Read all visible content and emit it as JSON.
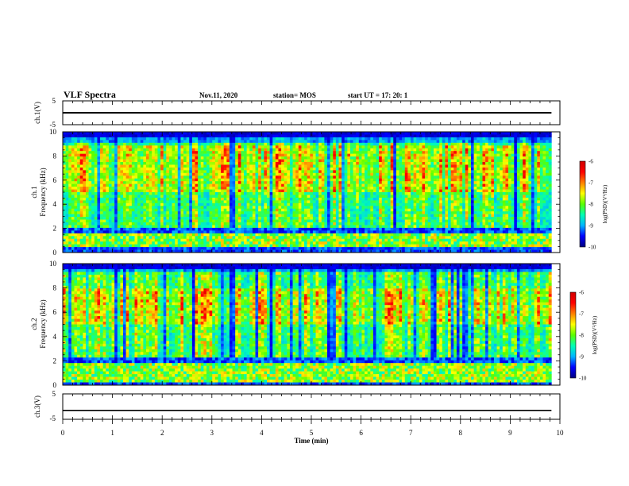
{
  "header": {
    "title": "VLF Spectra",
    "date": "Nov.11, 2020",
    "station": "station= MOS",
    "start": "start UT = 17: 20: 1"
  },
  "colors": {
    "colormap": [
      "#00007f",
      "#0000ff",
      "#00b4ff",
      "#00ffb4",
      "#5aff00",
      "#ffff00",
      "#ff7f00",
      "#ff0000",
      "#d10000"
    ],
    "trace": "#000000"
  },
  "chart_data": [
    {
      "type": "line",
      "panel": "ch1-voltage",
      "ylabel": "ch.1(V)",
      "ylim": [
        -5,
        5
      ],
      "yticks": [
        "5",
        "-5"
      ],
      "x": [
        0,
        9.83
      ],
      "y": [
        0,
        0
      ]
    },
    {
      "type": "heatmap",
      "panel": "ch1-spectrogram",
      "ylabel_line1": "ch.1",
      "ylabel_line2": "Frequency (kHz)",
      "ylim": [
        0,
        10
      ],
      "yticks": [
        "0",
        "2",
        "4",
        "6",
        "8",
        "10"
      ],
      "data_end_min": 9.83,
      "bands_khz": {
        "low_strong": [
          0.4,
          1.6
        ],
        "quiet_gap": [
          1.6,
          2.1
        ],
        "main": [
          2.1,
          9.0
        ],
        "peak": [
          5.0,
          8.8
        ],
        "cutoff_top": 9.6
      },
      "colorbar": {
        "label": "log(PSD)(V²/Hz)",
        "ticks": [
          "-6",
          "-7",
          "-8",
          "-9",
          "-10"
        ],
        "range": [
          -10,
          -6
        ]
      }
    },
    {
      "type": "heatmap",
      "panel": "ch2-spectrogram",
      "ylabel_line1": "ch.2",
      "ylabel_line2": "Frequency (kHz)",
      "ylim": [
        0,
        10
      ],
      "yticks": [
        "0",
        "2",
        "4",
        "6",
        "8",
        "10"
      ],
      "data_end_min": 9.83,
      "bands_khz": {
        "low_strong": [
          0.2,
          1.8
        ],
        "quiet_gap": [
          1.8,
          2.3
        ],
        "main": [
          2.3,
          9.4
        ],
        "peak": [
          5.0,
          8.0
        ],
        "cutoff_top": 9.6
      },
      "colorbar": {
        "label": "log(PSD)(V²/Hz)",
        "ticks": [
          "-6",
          "-7",
          "-8",
          "-9",
          "-10"
        ],
        "range": [
          -10,
          -6
        ]
      }
    },
    {
      "type": "line",
      "panel": "ch3-voltage",
      "ylabel": "ch.3(V)",
      "ylim": [
        -5,
        5
      ],
      "yticks": [
        "5",
        "-5"
      ],
      "x": [
        0,
        9.83
      ],
      "y": [
        -1.5,
        -1.5
      ]
    }
  ],
  "xaxis": {
    "label": "Time (min)",
    "ticks": [
      "0",
      "1",
      "2",
      "3",
      "4",
      "5",
      "6",
      "7",
      "8",
      "9",
      "10"
    ],
    "xlim": [
      0,
      10
    ]
  }
}
